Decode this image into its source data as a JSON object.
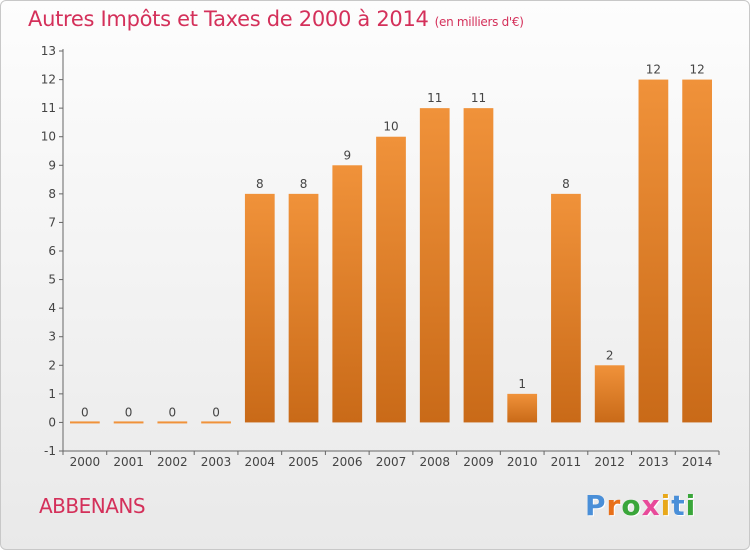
{
  "title": "Autres Impôts et Taxes de 2000 à 2014",
  "title_unit": "(en milliers d'€)",
  "commune": "ABBENANS",
  "logo": {
    "letters": [
      "P",
      "r",
      "o",
      "x",
      "i",
      "t",
      "i"
    ],
    "colors": [
      "#4a8fd8",
      "#e8701a",
      "#3aa63a",
      "#e84a9a",
      "#e8a81a",
      "#4a8fd8",
      "#3aa63a"
    ]
  },
  "colors": {
    "bar": "#f0923a",
    "bar_dark": "#c96a18",
    "title": "#d4305a"
  },
  "chart_data": {
    "type": "bar",
    "title": "Autres Impôts et Taxes de 2000 à 2014",
    "categories": [
      "2000",
      "2001",
      "2002",
      "2003",
      "2004",
      "2005",
      "2006",
      "2007",
      "2008",
      "2009",
      "2010",
      "2011",
      "2012",
      "2013",
      "2014"
    ],
    "values": [
      0,
      0,
      0,
      0,
      8,
      8,
      9,
      10,
      11,
      11,
      1,
      8,
      2,
      12,
      12
    ],
    "value_labels": [
      "0",
      "0",
      "0",
      "0",
      "8",
      "8",
      "9",
      "10",
      "11",
      "11",
      "1",
      "8",
      "2",
      "12",
      "12"
    ],
    "ylim": [
      -1,
      13
    ],
    "yticks": [
      "-1",
      "0",
      "1",
      "2",
      "3",
      "4",
      "5",
      "6",
      "7",
      "8",
      "9",
      "10",
      "11",
      "12",
      "13"
    ],
    "grid": false,
    "xlabel": "",
    "ylabel": ""
  }
}
